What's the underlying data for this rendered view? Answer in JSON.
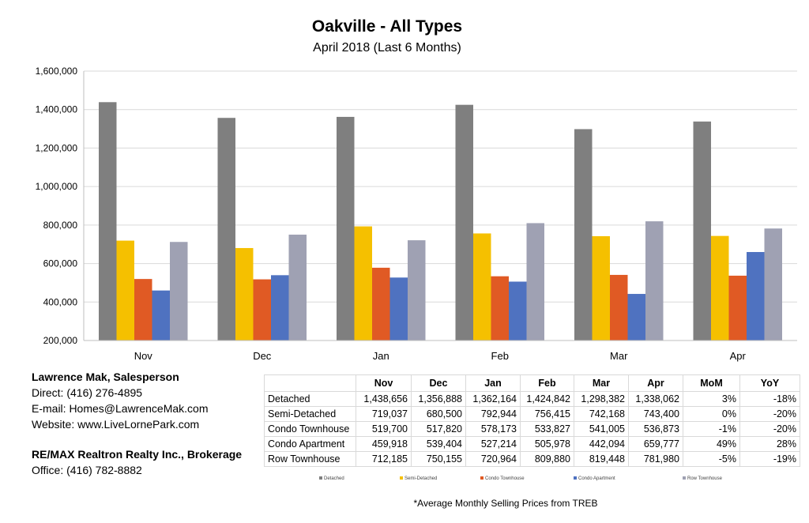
{
  "header": {
    "title": "Oakville - All Types",
    "subtitle": "April 2018 (Last 6 Months)"
  },
  "contact": {
    "name": "Lawrence Mak, Salesperson",
    "direct": "Direct:  (416) 276-4895",
    "email": "E-mail:  Homes@LawrenceMak.com",
    "website": "Website: www.LiveLornePark.com",
    "brokerage": "RE/MAX Realtron Realty Inc., Brokerage",
    "office": "Office: (416) 782-8882"
  },
  "footnote": "*Average Monthly Selling Prices  from TREB",
  "chart_data": {
    "type": "bar",
    "title": "Oakville - All Types",
    "subtitle": "April 2018 (Last 6 Months)",
    "categories": [
      "Nov",
      "Dec",
      "Jan",
      "Feb",
      "Mar",
      "Apr"
    ],
    "ylim": [
      200000,
      1600000
    ],
    "yticks": [
      "200,000",
      "400,000",
      "600,000",
      "800,000",
      "1,000,000",
      "1,200,000",
      "1,400,000",
      "1,600,000"
    ],
    "ytick_values": [
      200000,
      400000,
      600000,
      800000,
      1000000,
      1200000,
      1400000,
      1600000
    ],
    "grid": true,
    "legend_position": "bottom",
    "series": [
      {
        "name": "Detached",
        "color": "#7f7f7f",
        "values": [
          1438656,
          1356888,
          1362164,
          1424842,
          1298382,
          1338062
        ]
      },
      {
        "name": "Semi-Detached",
        "color": "#f5c000",
        "values": [
          719037,
          680500,
          792944,
          756415,
          742168,
          743400
        ]
      },
      {
        "name": "Condo Townhouse",
        "color": "#e05a24",
        "values": [
          519700,
          517820,
          578173,
          533827,
          541005,
          536873
        ]
      },
      {
        "name": "Condo Apartment",
        "color": "#4f72c0",
        "values": [
          459918,
          539404,
          527214,
          505978,
          442094,
          659777
        ]
      },
      {
        "name": "Row Townhouse",
        "color": "#9fa1b3",
        "values": [
          712185,
          750155,
          720964,
          809880,
          819448,
          781980
        ]
      }
    ]
  },
  "table": {
    "headers": [
      "",
      "Nov",
      "Dec",
      "Jan",
      "Feb",
      "Mar",
      "Apr",
      "MoM",
      "YoY"
    ],
    "rows": [
      [
        "Detached",
        "1,438,656",
        "1,356,888",
        "1,362,164",
        "1,424,842",
        "1,298,382",
        "1,338,062",
        "3%",
        "-18%"
      ],
      [
        "Semi-Detached",
        "719,037",
        "680,500",
        "792,944",
        "756,415",
        "742,168",
        "743,400",
        "0%",
        "-20%"
      ],
      [
        "Condo Townhouse",
        "519,700",
        "517,820",
        "578,173",
        "533,827",
        "541,005",
        "536,873",
        "-1%",
        "-20%"
      ],
      [
        "Condo Apartment",
        "459,918",
        "539,404",
        "527,214",
        "505,978",
        "442,094",
        "659,777",
        "49%",
        "28%"
      ],
      [
        "Row Townhouse",
        "712,185",
        "750,155",
        "720,964",
        "809,880",
        "819,448",
        "781,980",
        "-5%",
        "-19%"
      ]
    ]
  }
}
